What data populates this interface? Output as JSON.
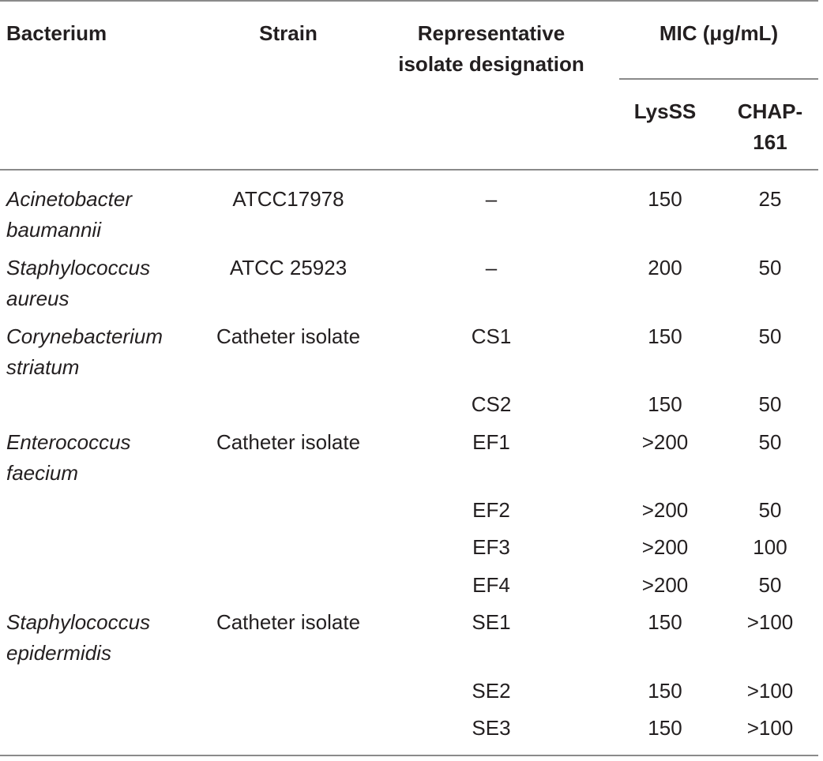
{
  "table": {
    "headers": {
      "bacterium": "Bacterium",
      "strain": "Strain",
      "designation_line1": "Representative",
      "designation_line2": "isolate designation",
      "mic": "MIC (μg/mL)",
      "lysss": "LysSS",
      "chap_line1": "CHAP-",
      "chap_line2": "161"
    },
    "rows": [
      {
        "bacterium_line1": "Acinetobacter",
        "bacterium_line2": "baumannii",
        "strain": "ATCC17978",
        "designation": "–",
        "lysss": "150",
        "chap": "25"
      },
      {
        "bacterium_line1": "Staphylococcus",
        "bacterium_line2": "aureus",
        "strain": "ATCC 25923",
        "designation": "–",
        "lysss": "200",
        "chap": "50"
      },
      {
        "bacterium_line1": "Corynebacterium",
        "bacterium_line2": "striatum",
        "strain": "Catheter isolate",
        "designation": "CS1",
        "lysss": "150",
        "chap": "50"
      },
      {
        "bacterium_line1": "",
        "bacterium_line2": "",
        "strain": "",
        "designation": "CS2",
        "lysss": "150",
        "chap": "50"
      },
      {
        "bacterium_line1": "Enterococcus",
        "bacterium_line2": "faecium",
        "strain": "Catheter isolate",
        "designation": "EF1",
        "lysss": ">200",
        "chap": "50"
      },
      {
        "bacterium_line1": "",
        "bacterium_line2": "",
        "strain": "",
        "designation": "EF2",
        "lysss": ">200",
        "chap": "50"
      },
      {
        "bacterium_line1": "",
        "bacterium_line2": "",
        "strain": "",
        "designation": "EF3",
        "lysss": ">200",
        "chap": "100"
      },
      {
        "bacterium_line1": "",
        "bacterium_line2": "",
        "strain": "",
        "designation": "EF4",
        "lysss": ">200",
        "chap": "50"
      },
      {
        "bacterium_line1": "Staphylococcus",
        "bacterium_line2": "epidermidis",
        "strain": "Catheter isolate",
        "designation": "SE1",
        "lysss": "150",
        "chap": ">100"
      },
      {
        "bacterium_line1": "",
        "bacterium_line2": "",
        "strain": "",
        "designation": "SE2",
        "lysss": "150",
        "chap": ">100"
      },
      {
        "bacterium_line1": "",
        "bacterium_line2": "",
        "strain": "",
        "designation": "SE3",
        "lysss": "150",
        "chap": ">100"
      }
    ]
  }
}
